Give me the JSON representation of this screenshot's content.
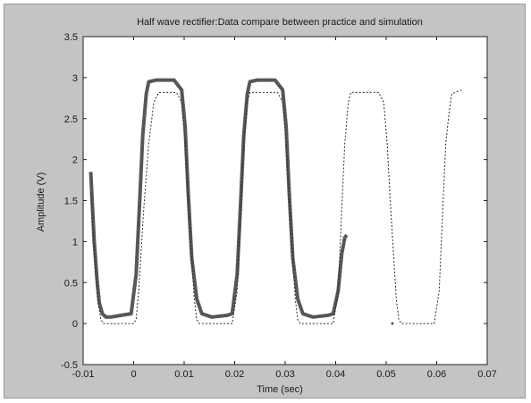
{
  "chart_data": {
    "type": "line",
    "title": "Half wave rectifier:Data compare between practice and simulation",
    "xlabel": "Time (sec)",
    "ylabel": "Amplitude (V)",
    "xlim": [
      -0.01,
      0.07
    ],
    "ylim": [
      -0.5,
      3.5
    ],
    "xticks": [
      -0.01,
      0,
      0.01,
      0.02,
      0.03,
      0.04,
      0.05,
      0.06,
      0.07
    ],
    "yticks": [
      -0.5,
      0,
      0.5,
      1,
      1.5,
      2,
      2.5,
      3,
      3.5
    ],
    "xtick_labels": [
      "-0.01",
      "0",
      "0.01",
      "0.02",
      "0.03",
      "0.04",
      "0.05",
      "0.06",
      "0.07"
    ],
    "ytick_labels": [
      "-0.5",
      "0",
      "0.5",
      "1",
      "1.5",
      "2",
      "2.5",
      "3",
      "3.5"
    ],
    "grid": false,
    "series": [
      {
        "style": "solid",
        "color": "#3a3a3a",
        "x": [
          -0.0085,
          -0.0078,
          -0.0072,
          -0.0068,
          -0.0062,
          -0.0055,
          -0.0045,
          -0.0025,
          -0.0005,
          0.0005,
          0.0012,
          0.0018,
          0.0025,
          0.003,
          0.0045,
          0.008,
          0.0095,
          0.0102,
          0.0108,
          0.0115,
          0.0125,
          0.0135,
          0.0155,
          0.0185,
          0.0195,
          0.0205,
          0.0212,
          0.0218,
          0.0225,
          0.023,
          0.0245,
          0.028,
          0.0295,
          0.0302,
          0.0308,
          0.0315,
          0.0325,
          0.0335,
          0.0355,
          0.0385,
          0.0395,
          0.0405,
          0.0412,
          0.0418,
          0.0422
        ],
        "y": [
          1.85,
          1.0,
          0.5,
          0.25,
          0.12,
          0.08,
          0.08,
          0.1,
          0.12,
          0.6,
          1.5,
          2.3,
          2.8,
          2.95,
          2.97,
          2.97,
          2.85,
          2.4,
          1.6,
          0.8,
          0.3,
          0.12,
          0.08,
          0.1,
          0.12,
          0.6,
          1.5,
          2.3,
          2.8,
          2.95,
          2.97,
          2.97,
          2.85,
          2.4,
          1.6,
          0.8,
          0.3,
          0.12,
          0.08,
          0.1,
          0.12,
          0.4,
          0.85,
          1.05,
          1.08
        ]
      },
      {
        "style": "dashed",
        "color": "#2a2a2a",
        "x": [
          -0.0085,
          -0.008,
          -0.0075,
          -0.007,
          -0.0065,
          -0.006,
          -0.005,
          -0.003,
          -0.001,
          0.0,
          0.0005,
          0.001,
          0.002,
          0.003,
          0.004,
          0.005,
          0.0085,
          0.0095,
          0.0102,
          0.0108,
          0.0115,
          0.012,
          0.0125,
          0.013,
          0.015,
          0.0195,
          0.0205,
          0.0212,
          0.0218,
          0.0225,
          0.023,
          0.024,
          0.025,
          0.0285,
          0.0295,
          0.0302,
          0.0308,
          0.0315,
          0.032,
          0.0325,
          0.033,
          0.035,
          0.0395,
          0.0405,
          0.0412,
          0.0418,
          0.0425,
          0.043,
          0.044,
          0.045,
          0.0485,
          0.0495,
          0.0502,
          0.0508,
          0.0515,
          0.052,
          0.0525,
          0.053,
          0.055,
          0.0595,
          0.0605,
          0.0612,
          0.0618,
          0.0625,
          0.063,
          0.064,
          0.065
        ],
        "y": [
          1.6,
          1.1,
          0.6,
          0.25,
          0.05,
          0.0,
          0.0,
          0.0,
          0.0,
          0.0,
          0.05,
          0.4,
          1.4,
          2.2,
          2.7,
          2.82,
          2.82,
          2.7,
          2.2,
          1.5,
          0.8,
          0.3,
          0.05,
          0.0,
          0.0,
          0.0,
          0.4,
          1.4,
          2.2,
          2.7,
          2.82,
          2.82,
          2.82,
          2.82,
          2.7,
          2.2,
          1.5,
          0.8,
          0.3,
          0.05,
          0.0,
          0.0,
          0.0,
          0.4,
          1.4,
          2.2,
          2.7,
          2.82,
          2.82,
          2.82,
          2.82,
          2.7,
          2.2,
          1.5,
          0.8,
          0.3,
          0.05,
          0.0,
          0.0,
          0.0,
          0.4,
          1.4,
          2.2,
          2.6,
          2.8,
          2.83,
          2.85
        ]
      }
    ]
  }
}
